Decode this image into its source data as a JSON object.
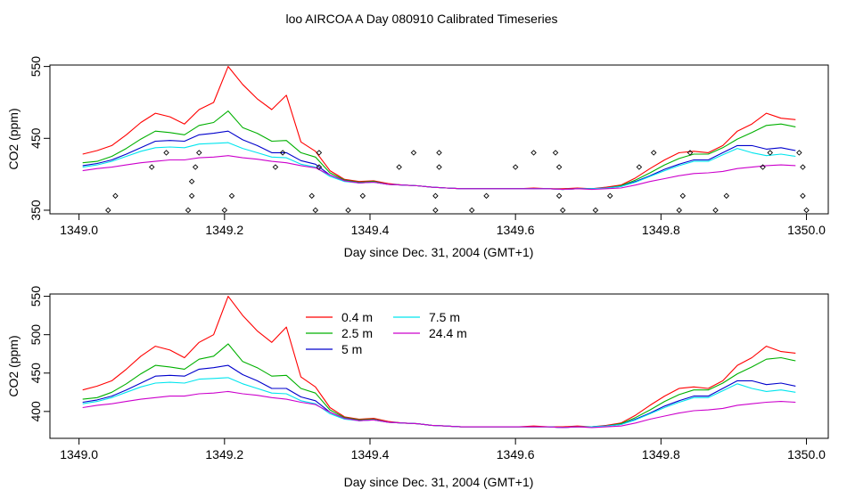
{
  "figure": {
    "title": "loo AIRCOA A  Day 080910  Calibrated Timeseries"
  },
  "colors": {
    "0.4 m": "#ff0000",
    "2.5 m": "#00b000",
    "5 m": "#0000cc",
    "7.5 m": "#00e5ee",
    "24.4 m": "#cc00cc",
    "markers": "#000000"
  },
  "chart_data": [
    {
      "type": "line",
      "title": "",
      "xlabel": "Day since Dec. 31, 2004 (GMT+1)",
      "ylabel": "CO2 (ppm)",
      "xlim": [
        1348.96,
        1350.03
      ],
      "ylim": [
        345,
        552
      ],
      "xticks": [
        "1349.0",
        "1349.2",
        "1349.4",
        "1349.6",
        "1349.8",
        "1350.0"
      ],
      "yticks": [
        "350",
        "450",
        "550"
      ],
      "ytick_values": [
        350,
        450,
        550
      ],
      "legend": null,
      "marker_series": {
        "style": "open-diamond",
        "points": [
          [
            1349.04,
            350
          ],
          [
            1349.05,
            370
          ],
          [
            1349.1,
            410
          ],
          [
            1349.12,
            430
          ],
          [
            1349.15,
            350
          ],
          [
            1349.155,
            370
          ],
          [
            1349.155,
            390
          ],
          [
            1349.16,
            410
          ],
          [
            1349.165,
            430
          ],
          [
            1349.2,
            350
          ],
          [
            1349.21,
            370
          ],
          [
            1349.27,
            410
          ],
          [
            1349.28,
            430
          ],
          [
            1349.32,
            370
          ],
          [
            1349.325,
            350
          ],
          [
            1349.33,
            430
          ],
          [
            1349.33,
            410
          ],
          [
            1349.37,
            350
          ],
          [
            1349.39,
            370
          ],
          [
            1349.44,
            410
          ],
          [
            1349.46,
            430
          ],
          [
            1349.49,
            350
          ],
          [
            1349.49,
            370
          ],
          [
            1349.495,
            410
          ],
          [
            1349.495,
            430
          ],
          [
            1349.54,
            350
          ],
          [
            1349.56,
            370
          ],
          [
            1349.6,
            410
          ],
          [
            1349.625,
            430
          ],
          [
            1349.655,
            430
          ],
          [
            1349.66,
            410
          ],
          [
            1349.66,
            370
          ],
          [
            1349.665,
            350
          ],
          [
            1349.71,
            350
          ],
          [
            1349.73,
            370
          ],
          [
            1349.77,
            410
          ],
          [
            1349.79,
            430
          ],
          [
            1349.825,
            350
          ],
          [
            1349.83,
            370
          ],
          [
            1349.84,
            430
          ],
          [
            1349.875,
            350
          ],
          [
            1349.89,
            370
          ],
          [
            1349.94,
            410
          ],
          [
            1349.95,
            430
          ],
          [
            1349.99,
            430
          ],
          [
            1349.995,
            410
          ],
          [
            1349.995,
            370
          ],
          [
            1350.0,
            350
          ]
        ]
      }
    },
    {
      "type": "line",
      "title": "",
      "xlabel": "Day since Dec. 31, 2004 (GMT+1)",
      "ylabel": "CO2 (ppm)",
      "xlim": [
        1348.96,
        1350.03
      ],
      "ylim": [
        365,
        553
      ],
      "xticks": [
        "1349.0",
        "1349.2",
        "1349.4",
        "1349.6",
        "1349.8",
        "1350.0"
      ],
      "yticks": [
        "400",
        "450",
        "500",
        "550"
      ],
      "ytick_values": [
        400,
        450,
        500,
        550
      ],
      "legend": [
        "0.4 m",
        "2.5 m",
        "5 m",
        "7.5 m",
        "24.4 m"
      ]
    }
  ],
  "x": [
    1349.005,
    1349.025,
    1349.045,
    1349.065,
    1349.085,
    1349.105,
    1349.125,
    1349.145,
    1349.165,
    1349.185,
    1349.205,
    1349.225,
    1349.245,
    1349.265,
    1349.285,
    1349.305,
    1349.325,
    1349.345,
    1349.365,
    1349.385,
    1349.405,
    1349.425,
    1349.445,
    1349.465,
    1349.485,
    1349.505,
    1349.525,
    1349.545,
    1349.565,
    1349.585,
    1349.605,
    1349.625,
    1349.645,
    1349.665,
    1349.685,
    1349.705,
    1349.725,
    1349.745,
    1349.765,
    1349.785,
    1349.805,
    1349.825,
    1349.845,
    1349.865,
    1349.885,
    1349.905,
    1349.925,
    1349.945,
    1349.965,
    1349.985
  ],
  "series": [
    {
      "name": "0.4 m",
      "values": [
        428,
        433,
        440,
        455,
        472,
        485,
        480,
        470,
        490,
        500,
        550,
        525,
        505,
        490,
        510,
        445,
        432,
        405,
        393,
        390,
        391,
        387,
        385,
        384,
        382,
        381,
        380,
        380,
        380,
        380,
        380,
        381,
        380,
        380,
        381,
        380,
        382,
        385,
        395,
        408,
        420,
        430,
        432,
        430,
        440,
        460,
        470,
        485,
        478,
        476
      ]
    },
    {
      "name": "2.5 m",
      "values": [
        416,
        418,
        425,
        436,
        449,
        460,
        458,
        455,
        468,
        472,
        488,
        465,
        457,
        446,
        447,
        430,
        424,
        402,
        392,
        389,
        390,
        386,
        385,
        384,
        382,
        381,
        380,
        380,
        380,
        380,
        380,
        380,
        380,
        379,
        380,
        380,
        381,
        384,
        392,
        402,
        413,
        422,
        428,
        428,
        437,
        449,
        458,
        468,
        470,
        466
      ]
    },
    {
      "name": "5 m",
      "values": [
        412,
        415,
        420,
        428,
        437,
        446,
        447,
        446,
        455,
        457,
        460,
        448,
        440,
        430,
        430,
        419,
        414,
        399,
        391,
        388,
        389,
        386,
        385,
        384,
        382,
        381,
        380,
        380,
        380,
        380,
        380,
        380,
        380,
        379,
        380,
        380,
        381,
        383,
        390,
        398,
        407,
        414,
        420,
        420,
        430,
        440,
        440,
        435,
        437,
        433
      ]
    },
    {
      "name": "7.5 m",
      "values": [
        410,
        413,
        418,
        425,
        432,
        437,
        438,
        437,
        442,
        443,
        444,
        436,
        430,
        424,
        423,
        414,
        410,
        397,
        390,
        388,
        389,
        386,
        385,
        384,
        382,
        381,
        380,
        380,
        380,
        380,
        380,
        380,
        380,
        379,
        380,
        380,
        381,
        383,
        389,
        397,
        405,
        412,
        418,
        418,
        427,
        436,
        430,
        426,
        428,
        425
      ]
    },
    {
      "name": "24.4 m",
      "values": [
        405,
        408,
        410,
        413,
        416,
        418,
        420,
        420,
        423,
        424,
        426,
        423,
        421,
        418,
        416,
        412,
        409,
        399,
        391,
        388,
        389,
        386,
        385,
        384,
        382,
        381,
        380,
        380,
        380,
        380,
        380,
        380,
        380,
        379,
        380,
        379,
        380,
        381,
        385,
        390,
        394,
        398,
        401,
        402,
        404,
        408,
        410,
        412,
        413,
        412
      ]
    }
  ]
}
